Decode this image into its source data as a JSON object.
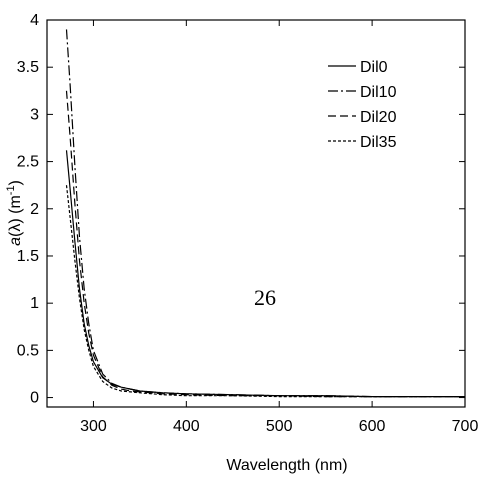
{
  "chart_data": {
    "type": "line",
    "title": "",
    "xlabel": "Wavelength (nm)",
    "ylabel_italic": "a",
    "ylabel_rest": "(λ) (m",
    "ylabel_exp": "-1",
    "ylabel_close": ")",
    "xlim": [
      250,
      700
    ],
    "ylim": [
      -0.1,
      4
    ],
    "xticks": [
      300,
      400,
      500,
      600,
      700
    ],
    "yticks": [
      0,
      0.5,
      1,
      1.5,
      2,
      2.5,
      3,
      3.5,
      4
    ],
    "xtick_labels": [
      "300",
      "400",
      "500",
      "600",
      "700"
    ],
    "ytick_labels": [
      "0",
      "0.5",
      "1",
      "1.5",
      "2",
      "2.5",
      "3",
      "3.5",
      "4"
    ],
    "grid": false,
    "legend_position": "top-right",
    "annotation": "26",
    "series": [
      {
        "name": "Dil0",
        "dash": "solid",
        "x": [
          271,
          275,
          280,
          285,
          290,
          295,
          300,
          310,
          320,
          330,
          340,
          350,
          375,
          400,
          450,
          500,
          550,
          600,
          650,
          700
        ],
        "y": [
          2.62,
          2.2,
          1.65,
          1.15,
          0.78,
          0.55,
          0.38,
          0.21,
          0.14,
          0.11,
          0.09,
          0.07,
          0.05,
          0.04,
          0.03,
          0.02,
          0.02,
          0.01,
          0.01,
          0.01
        ]
      },
      {
        "name": "Dil10",
        "dash": "dashdot",
        "x": [
          271,
          275,
          280,
          285,
          290,
          295,
          300,
          310,
          320,
          330,
          340,
          350,
          375,
          400,
          450,
          500,
          550,
          600,
          650,
          700
        ],
        "y": [
          3.9,
          3.3,
          2.45,
          1.7,
          1.15,
          0.78,
          0.5,
          0.25,
          0.15,
          0.11,
          0.09,
          0.07,
          0.05,
          0.04,
          0.03,
          0.02,
          0.02,
          0.01,
          0.01,
          0.01
        ]
      },
      {
        "name": "Dil20",
        "dash": "dashed",
        "x": [
          271,
          275,
          280,
          285,
          290,
          295,
          300,
          310,
          320,
          330,
          340,
          350,
          375,
          400,
          450,
          500,
          550,
          600,
          650,
          700
        ],
        "y": [
          3.25,
          2.75,
          2.05,
          1.45,
          1.0,
          0.68,
          0.45,
          0.22,
          0.13,
          0.09,
          0.07,
          0.06,
          0.04,
          0.03,
          0.02,
          0.02,
          0.01,
          0.01,
          0.01,
          0.01
        ]
      },
      {
        "name": "Dil35",
        "dash": "dotted",
        "x": [
          271,
          275,
          280,
          285,
          290,
          295,
          300,
          310,
          320,
          330,
          340,
          350,
          375,
          400,
          450,
          500,
          550,
          600,
          650,
          700
        ],
        "y": [
          2.25,
          1.9,
          1.45,
          1.05,
          0.72,
          0.5,
          0.33,
          0.17,
          0.1,
          0.07,
          0.06,
          0.05,
          0.03,
          0.02,
          0.02,
          0.01,
          0.01,
          0.01,
          0.01,
          0.01
        ]
      }
    ]
  }
}
